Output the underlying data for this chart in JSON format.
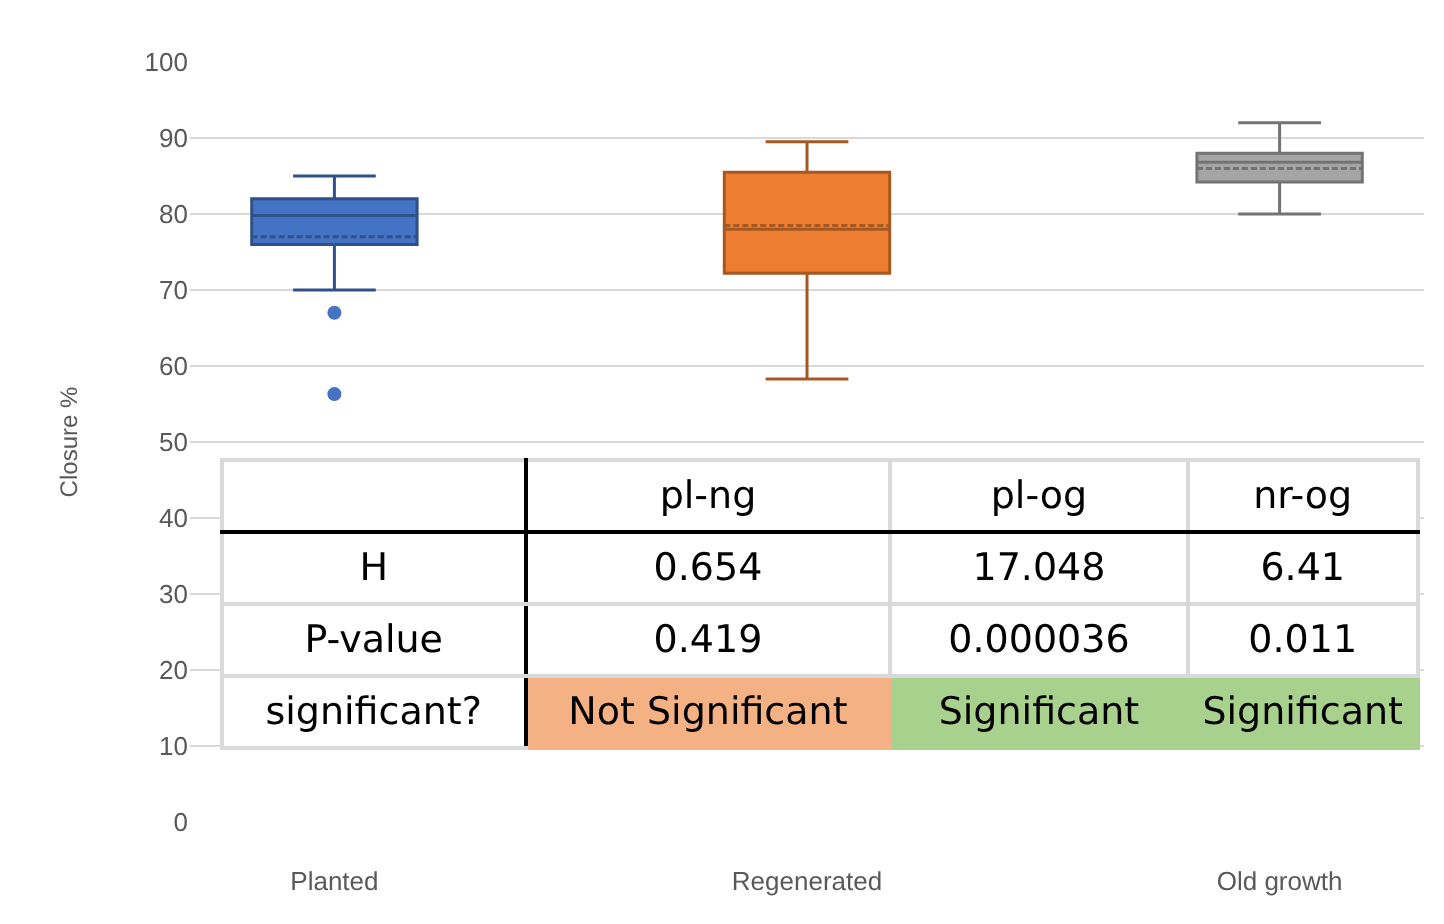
{
  "chart_data": {
    "type": "box",
    "ylabel": "Closure %",
    "categories": [
      "Planted",
      "Regenerated",
      "Old growth"
    ],
    "colors": [
      "#4472c4",
      "#ed7d31",
      "#a5a5a5"
    ],
    "boxes": [
      {
        "low": 70,
        "q1": 76,
        "median": 79.8,
        "q3": 82,
        "high": 85,
        "mean": 77,
        "outliers": [
          67,
          56.3
        ]
      },
      {
        "low": 58.3,
        "q1": 72.2,
        "median": 78,
        "q3": 85.5,
        "high": 89.5,
        "mean": 78.5
      },
      {
        "low": 80,
        "q1": 84.2,
        "median": 86.8,
        "q3": 88,
        "high": 92,
        "mean": 86
      }
    ],
    "ylim": [
      0,
      100
    ],
    "yticks": [
      0,
      10,
      20,
      30,
      40,
      50,
      60,
      70,
      80,
      90,
      100
    ],
    "grid": "y",
    "annotations": [
      "pl-ng",
      "pl-og",
      "nr-og",
      "H",
      "0.654",
      "17.048",
      "6.41",
      "P-value",
      "0.419",
      "0.000036",
      "0.011",
      "significant?",
      "Not Significant",
      "Significant",
      "Significant"
    ]
  }
}
